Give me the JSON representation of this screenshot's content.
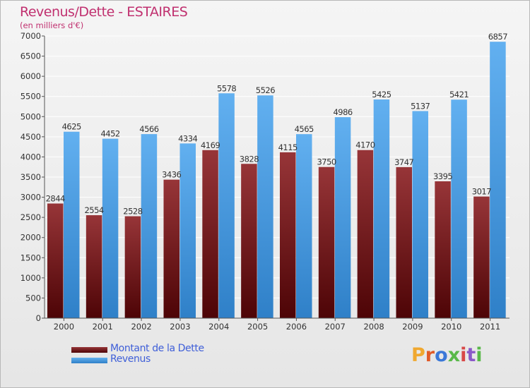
{
  "header": {
    "title": "Revenus/Dette - ESTAIRES",
    "subtitle": "(en milliers d'€)"
  },
  "colors": {
    "dette": "#6b0f12",
    "revenus": "#3b8ed8",
    "title": "#c0306f",
    "legend_text": "#3f5fd8"
  },
  "legend": {
    "dette_label": "Montant de la Dette",
    "revenus_label": "Revenus",
    "placement": "bottom-left"
  },
  "logo": {
    "letters": [
      "P",
      "r",
      "o",
      "x",
      "i",
      "t",
      "i"
    ],
    "colors": [
      "#f0a830",
      "#e05a28",
      "#3b78d8",
      "#58b848",
      "#d84848",
      "#8a58c8",
      "#58b848"
    ]
  },
  "chart_data": {
    "type": "bar",
    "categories": [
      "2000",
      "2001",
      "2002",
      "2003",
      "2004",
      "2005",
      "2006",
      "2007",
      "2008",
      "2009",
      "2010",
      "2011"
    ],
    "series": [
      {
        "name": "Montant de la Dette",
        "values": [
          2844,
          2554,
          2528,
          3436,
          4169,
          3828,
          4115,
          3750,
          4170,
          3747,
          3395,
          3017
        ]
      },
      {
        "name": "Revenus",
        "values": [
          4625,
          4452,
          4566,
          4334,
          5578,
          5526,
          4565,
          4986,
          5425,
          5137,
          5421,
          6857
        ]
      }
    ],
    "ylim": [
      0,
      7000
    ],
    "yticks": [
      0,
      500,
      1000,
      1500,
      2000,
      2500,
      3000,
      3500,
      4000,
      4500,
      5000,
      5500,
      6000,
      6500,
      7000
    ],
    "grid": true,
    "data_labels": true
  }
}
